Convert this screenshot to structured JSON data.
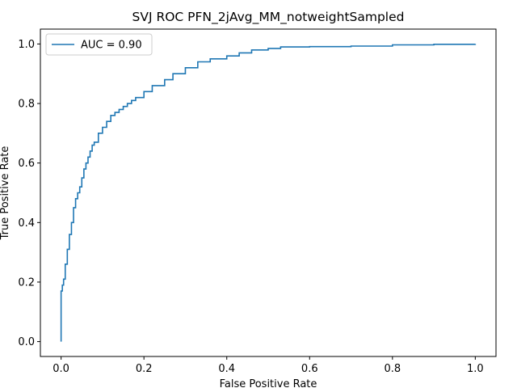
{
  "chart_data": {
    "type": "line",
    "title": "SVJ  ROC PFN_2jAvg_MM_notweightSampled",
    "xlabel": "False Positive Rate",
    "ylabel": "True Positive Rate",
    "xlim": [
      -0.05,
      1.05
    ],
    "ylim": [
      -0.05,
      1.05
    ],
    "xticks": [
      0.0,
      0.2,
      0.4,
      0.6,
      0.8,
      1.0
    ],
    "yticks": [
      0.0,
      0.2,
      0.4,
      0.6,
      0.8,
      1.0
    ],
    "xtick_labels": [
      "0.0",
      "0.2",
      "0.4",
      "0.6",
      "0.8",
      "1.0"
    ],
    "ytick_labels": [
      "0.0",
      "0.2",
      "0.4",
      "0.6",
      "0.8",
      "1.0"
    ],
    "grid": false,
    "legend_position": "upper-left",
    "series": [
      {
        "name": "AUC = 0.90",
        "color": "#1f77b4",
        "x": [
          0.0,
          0.0,
          0.003,
          0.006,
          0.01,
          0.015,
          0.02,
          0.025,
          0.03,
          0.035,
          0.04,
          0.045,
          0.05,
          0.055,
          0.06,
          0.065,
          0.07,
          0.075,
          0.08,
          0.09,
          0.1,
          0.11,
          0.12,
          0.13,
          0.14,
          0.15,
          0.16,
          0.17,
          0.18,
          0.2,
          0.22,
          0.25,
          0.27,
          0.3,
          0.33,
          0.36,
          0.4,
          0.43,
          0.46,
          0.5,
          0.53,
          0.6,
          0.7,
          0.8,
          0.9,
          1.0
        ],
        "y": [
          0.0,
          0.17,
          0.19,
          0.21,
          0.26,
          0.31,
          0.36,
          0.4,
          0.45,
          0.48,
          0.5,
          0.52,
          0.55,
          0.58,
          0.6,
          0.62,
          0.64,
          0.66,
          0.67,
          0.7,
          0.72,
          0.74,
          0.76,
          0.77,
          0.78,
          0.79,
          0.8,
          0.81,
          0.82,
          0.84,
          0.86,
          0.88,
          0.9,
          0.92,
          0.94,
          0.95,
          0.96,
          0.97,
          0.98,
          0.985,
          0.99,
          0.991,
          0.993,
          0.997,
          0.999,
          1.0
        ]
      }
    ]
  }
}
